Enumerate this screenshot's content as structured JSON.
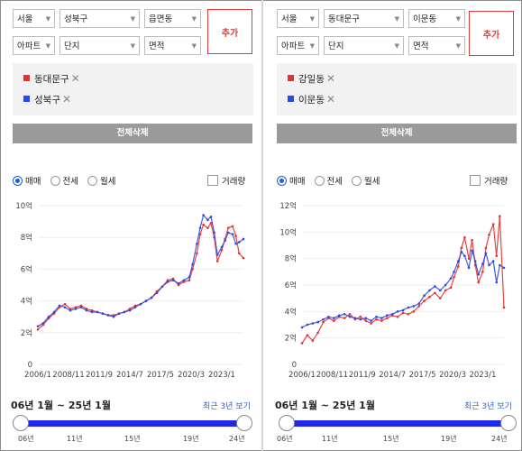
{
  "panels": [
    {
      "selects": {
        "sido": "서울",
        "gu": "성북구",
        "dong": "읍면동",
        "type": "아파트",
        "complex": "단지",
        "area": "면적"
      },
      "add_label": "추가",
      "chips": [
        {
          "label": "동대문구",
          "color": "#e53030"
        },
        {
          "label": "성북구",
          "color": "#3048e0"
        }
      ],
      "delete_all_label": "전체삭제",
      "radios": [
        {
          "label": "매매",
          "checked": true
        },
        {
          "label": "전세",
          "checked": false
        },
        {
          "label": "월세",
          "checked": false
        }
      ],
      "volume_label": "거래량",
      "range_label": "06년 1월 ~ 25년 1월",
      "recent_label": "최근 3년 보기",
      "slider_ticks": [
        "06년",
        "11년",
        "15년",
        "19년",
        "24년"
      ],
      "chart_data": {
        "type": "line",
        "y_unit": "억",
        "ylim": [
          0,
          10
        ],
        "yticks": [
          {
            "v": 0,
            "label": "0"
          },
          {
            "v": 2,
            "label": "2억"
          },
          {
            "v": 4,
            "label": "4억"
          },
          {
            "v": 6,
            "label": "6억"
          },
          {
            "v": 8,
            "label": "8억"
          },
          {
            "v": 10,
            "label": "10억"
          }
        ],
        "xlim": [
          2006.0,
          2025.0
        ],
        "xticks": [
          {
            "v": 2006.0,
            "label": "2006/1"
          },
          {
            "v": 2008.83,
            "label": "2008/11"
          },
          {
            "v": 2011.67,
            "label": "2011/9"
          },
          {
            "v": 2014.5,
            "label": "2014/7"
          },
          {
            "v": 2017.33,
            "label": "2017/5"
          },
          {
            "v": 2020.17,
            "label": "2020/3"
          },
          {
            "v": 2023.0,
            "label": "2023/1"
          }
        ],
        "series": [
          {
            "name": "동대문구",
            "color": "#e53030",
            "x": [
              2006.0,
              2006.5,
              2007.0,
              2007.5,
              2008.0,
              2008.5,
              2009.0,
              2009.5,
              2010.0,
              2010.5,
              2011.0,
              2011.5,
              2012.0,
              2012.5,
              2013.0,
              2013.5,
              2014.0,
              2014.5,
              2015.0,
              2015.5,
              2016.0,
              2016.5,
              2017.0,
              2017.5,
              2018.0,
              2018.5,
              2019.0,
              2019.5,
              2020.0,
              2020.3,
              2020.7,
              2021.0,
              2021.3,
              2021.7,
              2022.0,
              2022.3,
              2022.6,
              2023.0,
              2023.3,
              2023.6,
              2024.0,
              2024.3,
              2024.6,
              2025.0
            ],
            "y": [
              2.2,
              2.5,
              2.9,
              3.2,
              3.6,
              3.8,
              3.5,
              3.6,
              3.7,
              3.5,
              3.4,
              3.3,
              3.2,
              3.1,
              3.1,
              3.2,
              3.3,
              3.5,
              3.7,
              3.8,
              4.0,
              4.2,
              4.6,
              4.9,
              5.3,
              5.4,
              5.0,
              5.2,
              5.3,
              6.0,
              7.0,
              8.2,
              8.8,
              8.6,
              8.9,
              8.0,
              6.5,
              7.2,
              7.9,
              8.6,
              8.7,
              8.1,
              7.0,
              6.7
            ]
          },
          {
            "name": "성북구",
            "color": "#3048e0",
            "x": [
              2006.0,
              2006.5,
              2007.0,
              2007.5,
              2008.0,
              2008.5,
              2009.0,
              2009.5,
              2010.0,
              2010.5,
              2011.0,
              2011.5,
              2012.0,
              2012.5,
              2013.0,
              2013.5,
              2014.0,
              2014.5,
              2015.0,
              2015.5,
              2016.0,
              2016.5,
              2017.0,
              2017.5,
              2018.0,
              2018.5,
              2019.0,
              2019.5,
              2020.0,
              2020.3,
              2020.7,
              2021.0,
              2021.3,
              2021.7,
              2022.0,
              2022.3,
              2022.6,
              2023.0,
              2023.3,
              2023.6,
              2024.0,
              2024.3,
              2024.6,
              2025.0
            ],
            "y": [
              2.4,
              2.6,
              3.0,
              3.3,
              3.7,
              3.6,
              3.4,
              3.5,
              3.6,
              3.4,
              3.3,
              3.3,
              3.2,
              3.1,
              3.0,
              3.2,
              3.3,
              3.4,
              3.6,
              3.8,
              4.0,
              4.2,
              4.5,
              4.9,
              5.2,
              5.3,
              5.1,
              5.3,
              5.5,
              6.3,
              7.6,
              8.6,
              9.4,
              9.1,
              9.3,
              8.3,
              6.9,
              7.4,
              7.8,
              8.3,
              8.2,
              7.6,
              7.7,
              7.9
            ]
          }
        ]
      }
    },
    {
      "selects": {
        "sido": "서울",
        "gu": "동대문구",
        "dong": "이문동",
        "type": "아파트",
        "complex": "단지",
        "area": "면적"
      },
      "add_label": "추가",
      "chips": [
        {
          "label": "강일동",
          "color": "#e53030"
        },
        {
          "label": "이문동",
          "color": "#3048e0"
        }
      ],
      "delete_all_label": "전체삭제",
      "radios": [
        {
          "label": "매매",
          "checked": true
        },
        {
          "label": "전세",
          "checked": false
        },
        {
          "label": "월세",
          "checked": false
        }
      ],
      "volume_label": "거래량",
      "range_label": "06년 1월 ~ 25년 1월",
      "recent_label": "최근 3년 보기",
      "slider_ticks": [
        "06년",
        "11년",
        "15년",
        "19년",
        "24년"
      ],
      "chart_data": {
        "type": "line",
        "y_unit": "억",
        "ylim": [
          0,
          12
        ],
        "yticks": [
          {
            "v": 0,
            "label": "0"
          },
          {
            "v": 2,
            "label": "2억"
          },
          {
            "v": 4,
            "label": "4억"
          },
          {
            "v": 6,
            "label": "6억"
          },
          {
            "v": 8,
            "label": "8억"
          },
          {
            "v": 10,
            "label": "10억"
          },
          {
            "v": 12,
            "label": "12억"
          }
        ],
        "xlim": [
          2006.0,
          2025.0
        ],
        "xticks": [
          {
            "v": 2006.0,
            "label": "2006/1"
          },
          {
            "v": 2008.83,
            "label": "2008/11"
          },
          {
            "v": 2011.67,
            "label": "2011/9"
          },
          {
            "v": 2014.5,
            "label": "2014/7"
          },
          {
            "v": 2017.33,
            "label": "2017/5"
          },
          {
            "v": 2020.17,
            "label": "2020/3"
          },
          {
            "v": 2023.0,
            "label": "2023/1"
          }
        ],
        "series": [
          {
            "name": "강일동",
            "color": "#e53030",
            "x": [
              2006.0,
              2006.5,
              2007.0,
              2007.5,
              2008.0,
              2008.5,
              2009.0,
              2009.5,
              2010.0,
              2010.5,
              2011.0,
              2011.5,
              2012.0,
              2012.5,
              2013.0,
              2013.5,
              2014.0,
              2014.5,
              2015.0,
              2015.5,
              2016.0,
              2016.5,
              2017.0,
              2017.5,
              2018.0,
              2018.5,
              2019.0,
              2019.5,
              2020.0,
              2020.3,
              2020.7,
              2021.0,
              2021.3,
              2021.7,
              2022.0,
              2022.3,
              2022.6,
              2023.0,
              2023.3,
              2023.6,
              2024.0,
              2024.3,
              2024.6,
              2025.0
            ],
            "y": [
              1.6,
              2.2,
              1.8,
              2.4,
              3.2,
              3.5,
              3.3,
              3.6,
              3.5,
              3.8,
              3.4,
              3.6,
              3.3,
              3.1,
              3.4,
              3.3,
              3.5,
              3.7,
              3.6,
              3.9,
              3.8,
              4.0,
              4.4,
              4.8,
              5.1,
              5.4,
              5.0,
              5.6,
              5.8,
              6.6,
              7.4,
              8.8,
              9.6,
              8.0,
              9.4,
              7.5,
              6.2,
              7.0,
              8.8,
              9.8,
              10.6,
              8.2,
              11.2,
              4.3
            ]
          },
          {
            "name": "이문동",
            "color": "#3048e0",
            "x": [
              2006.0,
              2006.5,
              2007.0,
              2007.5,
              2008.0,
              2008.5,
              2009.0,
              2009.5,
              2010.0,
              2010.5,
              2011.0,
              2011.5,
              2012.0,
              2012.5,
              2013.0,
              2013.5,
              2014.0,
              2014.5,
              2015.0,
              2015.5,
              2016.0,
              2016.5,
              2017.0,
              2017.5,
              2018.0,
              2018.5,
              2019.0,
              2019.5,
              2020.0,
              2020.3,
              2020.7,
              2021.0,
              2021.3,
              2021.7,
              2022.0,
              2022.3,
              2022.6,
              2023.0,
              2023.3,
              2023.6,
              2024.0,
              2024.3,
              2024.6,
              2025.0
            ],
            "y": [
              2.8,
              3.0,
              3.1,
              3.2,
              3.4,
              3.6,
              3.5,
              3.7,
              3.8,
              3.6,
              3.5,
              3.4,
              3.5,
              3.3,
              3.6,
              3.5,
              3.7,
              3.8,
              4.0,
              4.1,
              4.3,
              4.4,
              4.6,
              5.2,
              5.6,
              5.9,
              5.6,
              6.0,
              6.5,
              7.0,
              7.8,
              8.5,
              8.2,
              7.3,
              8.6,
              7.8,
              6.8,
              7.6,
              8.4,
              7.5,
              7.8,
              6.2,
              7.5,
              7.3
            ]
          }
        ]
      }
    }
  ]
}
